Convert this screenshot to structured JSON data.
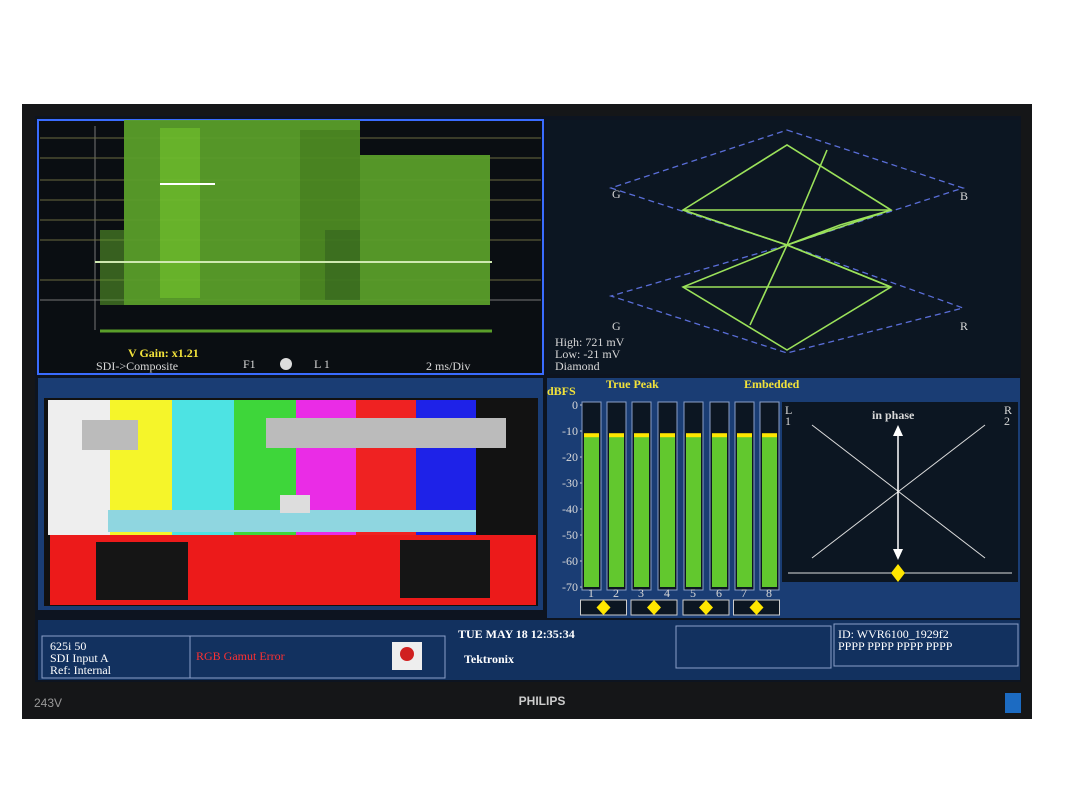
{
  "monitor": {
    "model": "243V",
    "brand": "PHILIPS"
  },
  "waveform": {
    "gain": "V Gain: x1.21",
    "mode": "SDI->Composite",
    "field": "F1",
    "line": "L 1",
    "sweep": "2 ms/Div"
  },
  "vector": {
    "labels": [
      "G",
      "B",
      "G",
      "R"
    ],
    "high": "High: 721 mV",
    "low": "Low: -21 mV",
    "display": "Diamond"
  },
  "audio": {
    "unit": "dBFS",
    "mode": "True Peak",
    "source": "Embedded",
    "scale": [
      0,
      -10,
      -20,
      -30,
      -40,
      -50,
      -60,
      -70
    ],
    "channels": [
      "1",
      "2",
      "3",
      "4",
      "5",
      "6",
      "7",
      "8"
    ],
    "levels": [
      -12,
      -12,
      -12,
      -12,
      -12,
      -12,
      -12,
      -12
    ],
    "phase": {
      "title": "in phase",
      "left": "L",
      "left_channel": "1",
      "right": "R",
      "right_channel": "2"
    }
  },
  "status": {
    "format": "625i 50",
    "input": "SDI Input A",
    "reference": "Ref: Internal",
    "alarm": "RGB Gamut Error",
    "datetime": "TUE MAY 18  12:35:34",
    "brand": "Tektronix",
    "id": "ID: WVR6100_1929f2",
    "code": "PPPP PPPP PPPP PPPP"
  }
}
